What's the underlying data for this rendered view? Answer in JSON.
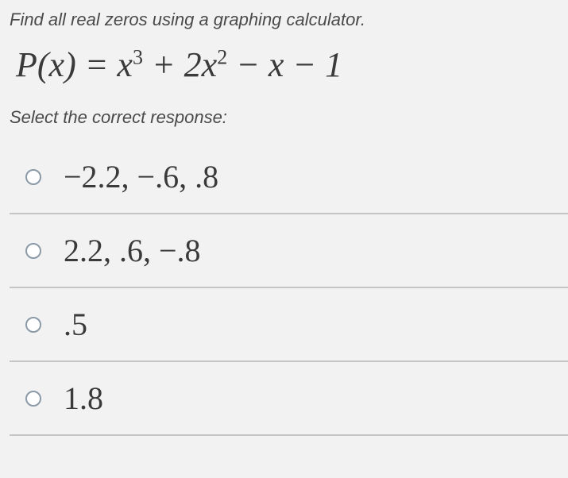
{
  "question": {
    "instruction": "Find all real zeros using a graphing calculator.",
    "equation_html": "<i>P</i>(<i>x</i>) = <i>x</i><sup>3</sup> + 2<i>x</i><sup>2</sup> − <i>x</i> − 1",
    "select_label": "Select the correct response:"
  },
  "options": [
    {
      "text": "−2.2,  −.6,  .8"
    },
    {
      "text": "2.2,  .6,  −.8"
    },
    {
      "text": ".5"
    },
    {
      "text": "1.8"
    }
  ],
  "colors": {
    "background": "#f2f2f2",
    "text": "#4a4a4a",
    "equation": "#3a3a3a",
    "divider": "#c5c5c5",
    "radio_border": "#8a9aa8"
  },
  "typography": {
    "instruction_fontsize": 22,
    "equation_fontsize": 44,
    "option_fontsize": 40,
    "instruction_style": "italic",
    "equation_font": "Times New Roman",
    "body_font": "Arial"
  }
}
